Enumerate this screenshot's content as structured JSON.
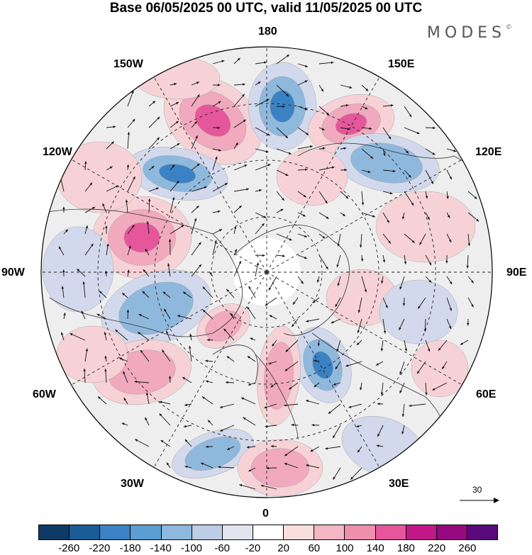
{
  "title": "Base 06/05/2025 00 UTC, valid 11/05/2025 00 UTC",
  "brand": "MODES",
  "brand_mark": "©",
  "longitude_labels": {
    "top": "180",
    "bottom": "0",
    "left": "90W",
    "right": "90E",
    "ul1": "150W",
    "ul2": "120W",
    "ur1": "150E",
    "ur2": "120E",
    "ll1": "60W",
    "ll2": "30W",
    "lr1": "60E",
    "lr2": "30E"
  },
  "reference_vector": {
    "label": "30"
  },
  "colorbar": {
    "colors": [
      "#0d3b66",
      "#1a5c96",
      "#3a82c4",
      "#5d9ed3",
      "#8fb8dd",
      "#bccde6",
      "#e3e3f0",
      "#ffffff",
      "#f9dede",
      "#f3b6c2",
      "#ee8fae",
      "#e5579a",
      "#c3188a",
      "#960a7f",
      "#5a0a7a"
    ],
    "ticks": [
      "-260",
      "-220",
      "-180",
      "-140",
      "-100",
      "-60",
      "-20",
      "20",
      "60",
      "100",
      "140",
      "180",
      "220",
      "260"
    ]
  },
  "anomaly_palette": {
    "neg_strong": "#3a82c4",
    "neg_mid": "#8fb8dd",
    "neg_weak": "#d3d9ec",
    "pos_weak": "#f6d2d6",
    "pos_mid": "#f1a9bd",
    "pos_strong": "#e5579a",
    "background": "#eeeeee"
  }
}
